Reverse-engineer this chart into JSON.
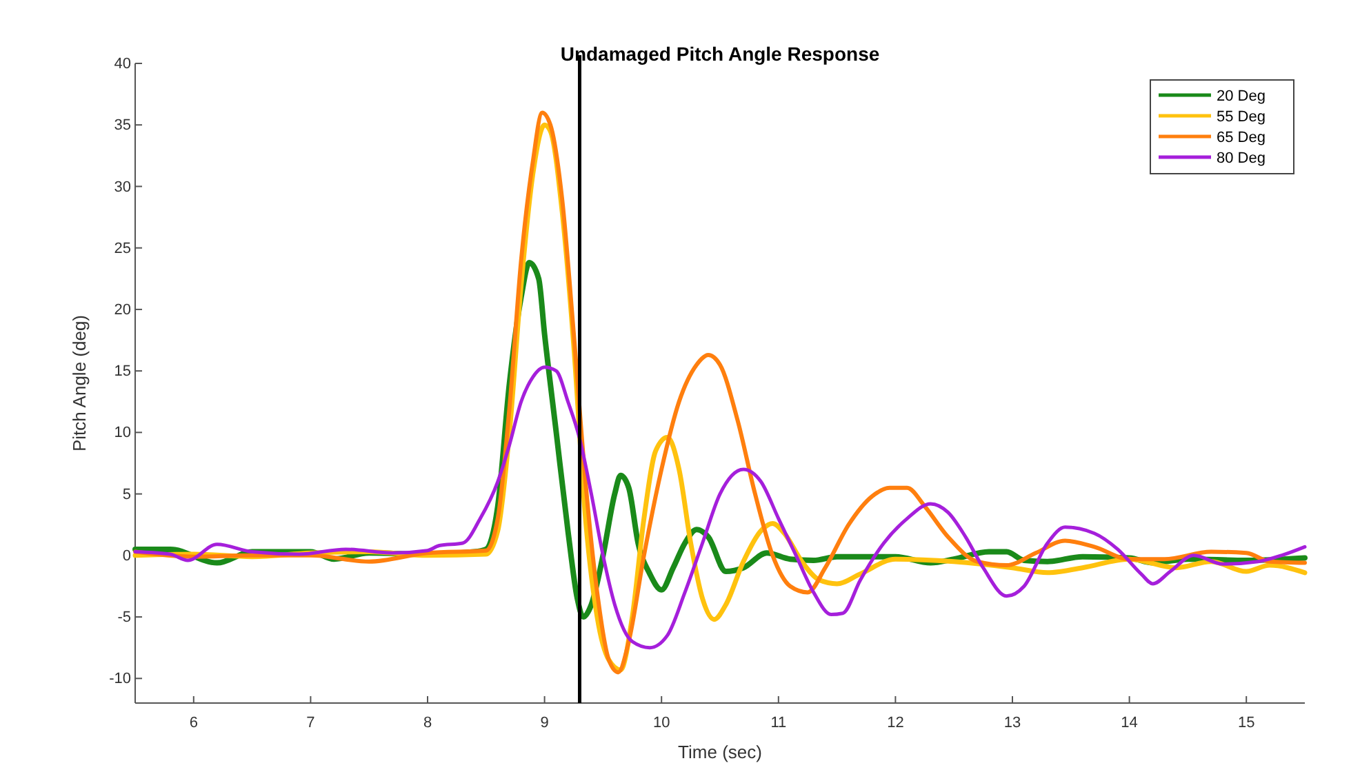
{
  "chart_data": {
    "type": "line",
    "title": "Undamaged Pitch Angle Response",
    "xlabel": "Time (sec)",
    "ylabel": "Pitch Angle (deg)",
    "xlim": [
      5.5,
      15.5
    ],
    "xticks": [
      6,
      7,
      8,
      9,
      10,
      11,
      12,
      13,
      14,
      15
    ],
    "ylim": [
      -12,
      40
    ],
    "yticks": [
      -10,
      -5,
      0,
      5,
      10,
      15,
      20,
      25,
      30,
      35,
      40
    ],
    "grid": false,
    "legend": "top right",
    "line_style": "solid",
    "marker": "none",
    "ref_lines": [
      {
        "axis": "x",
        "value": 9.3,
        "color": "#000000"
      }
    ],
    "series": [
      {
        "name": "20 Deg",
        "color": "#1a8a1a",
        "x": [
          5.5,
          5.8,
          6.2,
          6.5,
          7,
          7.2,
          7.5,
          8,
          8.4,
          8.5,
          8.6,
          8.7,
          8.8,
          8.87,
          8.95,
          9.0,
          9.1,
          9.2,
          9.28,
          9.33,
          9.4,
          9.5,
          9.6,
          9.65,
          9.72,
          9.8,
          9.9,
          10.0,
          10.1,
          10.2,
          10.3,
          10.4,
          10.55,
          10.7,
          10.9,
          11.1,
          11.3,
          11.5,
          12,
          12.3,
          12.5,
          12.8,
          12.95,
          13.1,
          13.3,
          13.6,
          14,
          14.2,
          14.5,
          15,
          15.5
        ],
        "values": [
          0.5,
          0.5,
          -0.6,
          0.3,
          0.3,
          -0.3,
          0.2,
          0.1,
          0.3,
          0.5,
          4,
          14,
          21,
          23.8,
          22.5,
          18,
          10,
          2,
          -3.5,
          -5,
          -4,
          0,
          5,
          6.5,
          5.5,
          1,
          -1.5,
          -2.8,
          -1,
          1,
          2.1,
          1.5,
          -1.3,
          -1,
          0.2,
          -0.3,
          -0.4,
          -0.1,
          -0.1,
          -0.6,
          -0.3,
          0.3,
          0.3,
          -0.4,
          -0.5,
          -0.1,
          -0.2,
          -0.6,
          -0.3,
          -0.4,
          -0.2
        ]
      },
      {
        "name": "55 Deg",
        "color": "#ffc20e",
        "x": [
          5.5,
          6,
          6.5,
          7,
          7.5,
          8,
          8.5,
          8.6,
          8.7,
          8.8,
          8.9,
          9.0,
          9.05,
          9.15,
          9.25,
          9.35,
          9.45,
          9.55,
          9.65,
          9.75,
          9.85,
          9.95,
          10.05,
          10.15,
          10.25,
          10.35,
          10.45,
          10.55,
          10.7,
          10.85,
          10.95,
          11.05,
          11.2,
          11.35,
          11.5,
          11.7,
          12,
          12.5,
          13,
          13.3,
          13.6,
          14,
          14.4,
          14.7,
          15,
          15.2,
          15.5
        ],
        "values": [
          0,
          0.1,
          -0.1,
          0.2,
          0.3,
          0,
          0.1,
          2,
          10,
          22,
          31,
          35,
          34.5,
          28,
          17,
          3,
          -5,
          -8.5,
          -9.3,
          -5,
          3,
          8.5,
          9.6,
          7,
          1,
          -3.5,
          -5.2,
          -4,
          -0.5,
          2,
          2.6,
          1.8,
          -0.5,
          -2,
          -2.3,
          -1.5,
          -0.3,
          -0.5,
          -1,
          -1.4,
          -1,
          -0.3,
          -1,
          -0.5,
          -1.3,
          -0.8,
          -1.4
        ]
      },
      {
        "name": "65 Deg",
        "color": "#ff7f0e",
        "x": [
          5.5,
          6,
          6.5,
          7,
          7.5,
          8,
          8.5,
          8.6,
          8.7,
          8.8,
          8.9,
          8.98,
          9.05,
          9.15,
          9.25,
          9.35,
          9.45,
          9.55,
          9.63,
          9.72,
          9.85,
          10.0,
          10.15,
          10.3,
          10.4,
          10.5,
          10.65,
          10.8,
          10.95,
          11.1,
          11.25,
          11.4,
          11.6,
          11.8,
          11.95,
          12.1,
          12.25,
          12.45,
          12.7,
          12.95,
          13.2,
          13.45,
          13.7,
          14,
          14.3,
          14.7,
          15,
          15.2,
          15.5
        ],
        "values": [
          0.3,
          -0.1,
          0,
          0,
          -0.5,
          0.2,
          0.4,
          3,
          12,
          24,
          32,
          36,
          35,
          29,
          18,
          6,
          -3,
          -8.5,
          -9.5,
          -7,
          0,
          7,
          12.5,
          15.5,
          16.3,
          15.5,
          11,
          5,
          0,
          -2.5,
          -3,
          -1,
          2.5,
          4.8,
          5.5,
          5.5,
          4,
          1.5,
          -0.5,
          -0.8,
          0.2,
          1.2,
          0.7,
          -0.3,
          -0.3,
          0.3,
          0.2,
          -0.5,
          -0.6
        ]
      },
      {
        "name": "80 Deg",
        "color": "#a51fdb",
        "x": [
          5.5,
          5.8,
          5.95,
          6.2,
          6.5,
          6.9,
          7.3,
          7.7,
          8,
          8.1,
          8.3,
          8.45,
          8.6,
          8.7,
          8.8,
          8.9,
          9.0,
          9.1,
          9.2,
          9.3,
          9.4,
          9.5,
          9.6,
          9.75,
          9.9,
          10.05,
          10.2,
          10.35,
          10.5,
          10.7,
          10.85,
          11.0,
          11.15,
          11.3,
          11.45,
          11.55,
          11.7,
          11.9,
          12.1,
          12.3,
          12.45,
          12.6,
          12.75,
          12.95,
          13.1,
          13.3,
          13.45,
          13.7,
          13.9,
          14.1,
          14.2,
          14.35,
          14.55,
          14.8,
          15.1,
          15.3,
          15.5
        ],
        "values": [
          0.3,
          0.1,
          -0.4,
          0.9,
          0.3,
          0.1,
          0.5,
          0.2,
          0.4,
          0.8,
          1,
          3,
          6,
          9,
          12.5,
          14.5,
          15.3,
          15,
          12.5,
          9.5,
          5,
          0,
          -4,
          -7,
          -7.5,
          -6.5,
          -3,
          1,
          5,
          7,
          6,
          3,
          0,
          -3,
          -4.8,
          -4.7,
          -2,
          1,
          3,
          4.2,
          3.5,
          1.5,
          -1,
          -3.3,
          -2.5,
          1,
          2.3,
          1.8,
          0.5,
          -1.5,
          -2.3,
          -1.3,
          0,
          -0.7,
          -0.5,
          0,
          0.7
        ]
      }
    ]
  }
}
